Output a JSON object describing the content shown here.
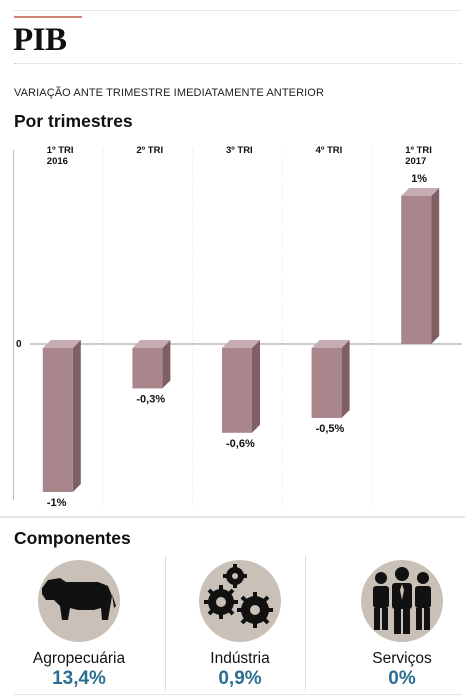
{
  "header": {
    "title": "PIB",
    "subtitle": "VARIAÇÃO ANTE TRIMESTRE IMEDIATAMENTE ANTERIOR",
    "section_chart": "Por trimestres",
    "section_components": "Componentes"
  },
  "chart_data": {
    "type": "bar",
    "title": "",
    "xlabel": "",
    "ylabel": "",
    "categories": [
      "1º TRI 2016",
      "2º TRI",
      "3º TRI",
      "4º TRI",
      "1º TRI 2017"
    ],
    "category_lines": [
      [
        "1º TRI",
        "2016"
      ],
      [
        "2º TRI"
      ],
      [
        "3º TRI"
      ],
      [
        "4º TRI"
      ],
      [
        "1º TRI",
        "2017"
      ]
    ],
    "values": [
      -1.0,
      -0.3,
      -0.6,
      -0.5,
      1.0
    ],
    "value_labels": [
      "-1%",
      "-0,3%",
      "-0,6%",
      "-0,5%",
      "1%"
    ],
    "zero_label": "0",
    "ylim": [
      -1.05,
      1.05
    ],
    "grid": true,
    "colors": {
      "bar_front": "#a8868b",
      "bar_side": "#7d5f64",
      "bar_top": "#c7adb1"
    }
  },
  "components": [
    {
      "icon": "cow-icon",
      "label": "Agropecuária",
      "value": "13,4%"
    },
    {
      "icon": "gears-icon",
      "label": "Indústria",
      "value": "0,9%"
    },
    {
      "icon": "people-icon",
      "label": "Serviços",
      "value": "0%"
    }
  ],
  "colors": {
    "accent": "#c9836f",
    "value_blue": "#2c6e92",
    "icon_bg": "#c9c0b7"
  }
}
